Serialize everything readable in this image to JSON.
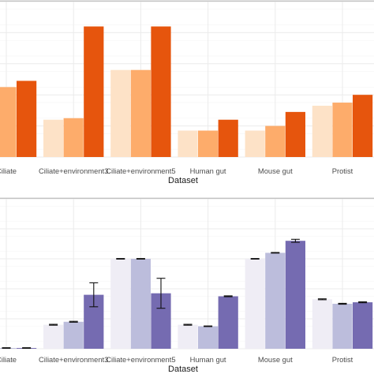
{
  "colors": {
    "panel_divider": "#9a9a9a",
    "grid_major": "#ebebeb",
    "grid_minor": "#f5f5f5",
    "tick_text": "#4d4d4d",
    "axis_title": "#1a1a1a",
    "error_bar": "#111111"
  },
  "chart_data": [
    {
      "type": "bar",
      "categories": [
        "Ciliate",
        "Ciliate+environment3",
        "Ciliate+environment5",
        "Human gut",
        "Mouse gut",
        "Protist"
      ],
      "xlabel": "Dataset",
      "ylabel": "",
      "ylim": [
        0,
        1
      ],
      "grid": true,
      "legend": "none",
      "series": [
        {
          "color": "#fde2c7",
          "values": [
            0.43,
            0.24,
            0.56,
            0.17,
            0.17,
            0.33
          ]
        },
        {
          "color": "#fdac6b",
          "values": [
            0.45,
            0.25,
            0.56,
            0.17,
            0.2,
            0.35
          ]
        },
        {
          "color": "#e6550d",
          "values": [
            0.49,
            0.84,
            0.84,
            0.24,
            0.29,
            0.4
          ]
        }
      ]
    },
    {
      "type": "bar",
      "categories": [
        "Ciliate",
        "Ciliate+environment3",
        "Ciliate+environment5",
        "Human gut",
        "Mouse gut",
        "Protist"
      ],
      "xlabel": "Dataset",
      "ylabel": "",
      "ylim": [
        0,
        1
      ],
      "grid": true,
      "legend": "none",
      "series": [
        {
          "color": "#efedf5",
          "values": [
            0.005,
            0.16,
            0.6,
            0.16,
            0.6,
            0.33
          ],
          "errors": [
            0.002,
            0.003,
            0.002,
            0.003,
            0.002,
            0.003
          ]
        },
        {
          "color": "#bcbddc",
          "values": [
            0.005,
            0.18,
            0.6,
            0.15,
            0.64,
            0.3
          ],
          "errors": [
            0.002,
            0.003,
            0.002,
            0.002,
            0.002,
            0.003
          ]
        },
        {
          "color": "#756bb1",
          "values": [
            0.005,
            0.36,
            0.37,
            0.35,
            0.72,
            0.31
          ],
          "errors": [
            0.002,
            0.08,
            0.1,
            0.003,
            0.01,
            0.003
          ]
        }
      ]
    }
  ]
}
